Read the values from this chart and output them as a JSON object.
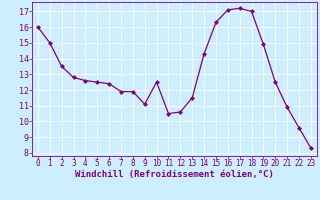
{
  "x": [
    0,
    1,
    2,
    3,
    4,
    5,
    6,
    7,
    8,
    9,
    10,
    11,
    12,
    13,
    14,
    15,
    16,
    17,
    18,
    19,
    20,
    21,
    22,
    23
  ],
  "y": [
    16.0,
    15.0,
    13.5,
    12.8,
    12.6,
    12.5,
    12.4,
    11.9,
    11.9,
    11.1,
    12.5,
    10.5,
    10.6,
    11.5,
    14.3,
    16.3,
    17.1,
    17.2,
    17.0,
    14.9,
    12.5,
    10.9,
    9.6,
    8.3
  ],
  "line_color": "#800080",
  "marker": "D",
  "markersize": 2.0,
  "linewidth": 0.9,
  "bg_color": "#cceeff",
  "grid_color": "#ffffff",
  "xlabel": "Windchill (Refroidissement éolien,°C)",
  "tick_color": "#800080",
  "xlim": [
    -0.5,
    23.5
  ],
  "ylim": [
    7.8,
    17.6
  ],
  "yticks": [
    8,
    9,
    10,
    11,
    12,
    13,
    14,
    15,
    16,
    17
  ],
  "xticks": [
    0,
    1,
    2,
    3,
    4,
    5,
    6,
    7,
    8,
    9,
    10,
    11,
    12,
    13,
    14,
    15,
    16,
    17,
    18,
    19,
    20,
    21,
    22,
    23
  ],
  "xlabel_fontsize": 6.5,
  "ytick_fontsize": 6.0,
  "xtick_fontsize": 5.5
}
